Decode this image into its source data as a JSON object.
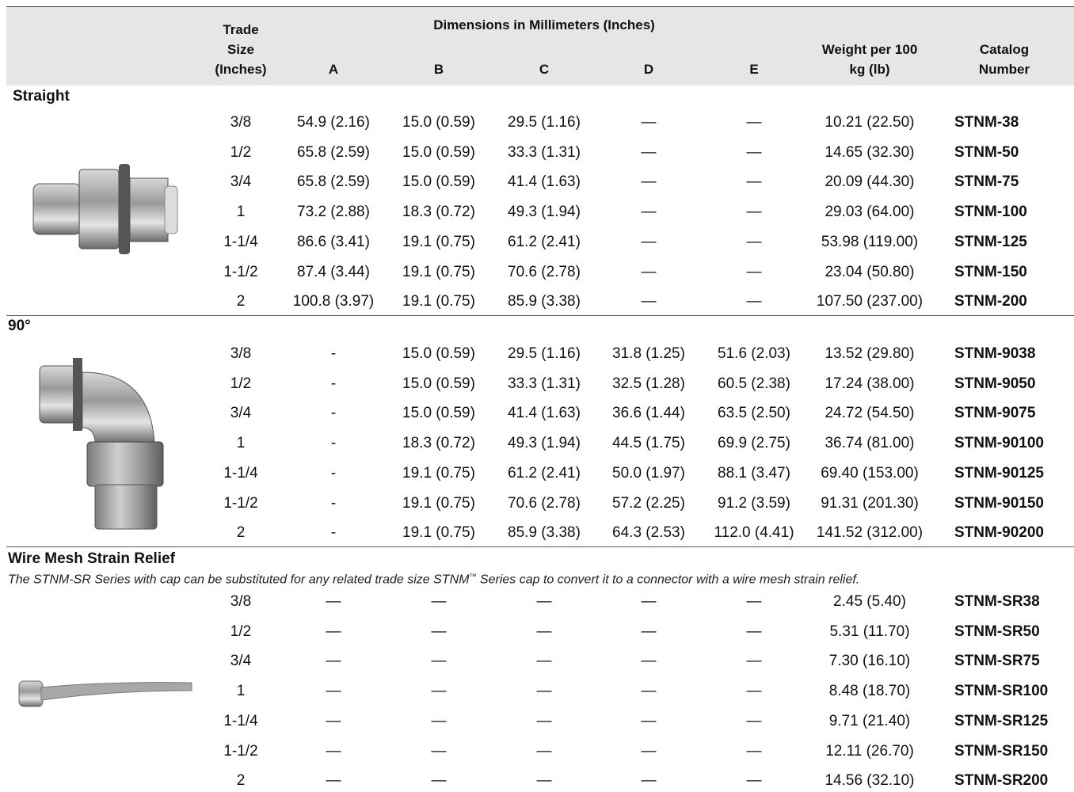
{
  "header": {
    "trade_size": [
      "Trade",
      "Size",
      "(Inches)"
    ],
    "dimensions": "Dimensions in Millimeters (Inches)",
    "columns": [
      "A",
      "B",
      "C",
      "D",
      "E"
    ],
    "weight": [
      "Weight per 100",
      "kg (lb)"
    ],
    "catalog": [
      "Catalog",
      "Number"
    ]
  },
  "sections": [
    {
      "title": "Straight",
      "rows": [
        [
          "3/8",
          "54.9 (2.16)",
          "15.0 (0.59)",
          "29.5 (1.16)",
          "—",
          "—",
          "10.21 (22.50)",
          "STNM-38"
        ],
        [
          "1/2",
          "65.8 (2.59)",
          "15.0 (0.59)",
          "33.3 (1.31)",
          "—",
          "—",
          "14.65 (32.30)",
          "STNM-50"
        ],
        [
          "3/4",
          "65.8 (2.59)",
          "15.0 (0.59)",
          "41.4 (1.63)",
          "—",
          "—",
          "20.09 (44.30)",
          "STNM-75"
        ],
        [
          "1",
          "73.2 (2.88)",
          "18.3 (0.72)",
          "49.3 (1.94)",
          "—",
          "—",
          "29.03 (64.00)",
          "STNM-100"
        ],
        [
          "1-1/4",
          "86.6 (3.41)",
          "19.1 (0.75)",
          "61.2 (2.41)",
          "—",
          "—",
          "53.98 (119.00)",
          "STNM-125"
        ],
        [
          "1-1/2",
          "87.4 (3.44)",
          "19.1 (0.75)",
          "70.6 (2.78)",
          "—",
          "—",
          "23.04 (50.80)",
          "STNM-150"
        ],
        [
          "2",
          "100.8 (3.97)",
          "19.1 (0.75)",
          "85.9 (3.38)",
          "—",
          "—",
          "107.50 (237.00)",
          "STNM-200"
        ]
      ]
    },
    {
      "title": "90°",
      "rows": [
        [
          "3/8",
          "-",
          "15.0 (0.59)",
          "29.5 (1.16)",
          "31.8 (1.25)",
          "51.6 (2.03)",
          "13.52 (29.80)",
          "STNM-9038"
        ],
        [
          "1/2",
          "-",
          "15.0 (0.59)",
          "33.3 (1.31)",
          "32.5 (1.28)",
          "60.5 (2.38)",
          "17.24 (38.00)",
          "STNM-9050"
        ],
        [
          "3/4",
          "-",
          "15.0 (0.59)",
          "41.4 (1.63)",
          "36.6 (1.44)",
          "63.5 (2.50)",
          "24.72 (54.50)",
          "STNM-9075"
        ],
        [
          "1",
          "-",
          "18.3 (0.72)",
          "49.3 (1.94)",
          "44.5 (1.75)",
          "69.9 (2.75)",
          "36.74 (81.00)",
          "STNM-90100"
        ],
        [
          "1-1/4",
          "-",
          "19.1 (0.75)",
          "61.2 (2.41)",
          "50.0 (1.97)",
          "88.1 (3.47)",
          "69.40 (153.00)",
          "STNM-90125"
        ],
        [
          "1-1/2",
          "-",
          "19.1 (0.75)",
          "70.6 (2.78)",
          "57.2 (2.25)",
          "91.2 (3.59)",
          "91.31 (201.30)",
          "STNM-90150"
        ],
        [
          "2",
          "-",
          "19.1 (0.75)",
          "85.9 (3.38)",
          "64.3 (2.53)",
          "112.0 (4.41)",
          "141.52 (312.00)",
          "STNM-90200"
        ]
      ]
    },
    {
      "title": "Wire Mesh Strain Relief",
      "note": {
        "text_1": "The STNM-SR Series with cap can be substituted for any related trade size STNM",
        "mark": "™",
        "text_2": " Series cap to convert it to a connector with a wire mesh strain relief."
      },
      "rows": [
        [
          "3/8",
          "—",
          "—",
          "—",
          "—",
          "—",
          "2.45 (5.40)",
          "STNM-SR38"
        ],
        [
          "1/2",
          "—",
          "—",
          "—",
          "—",
          "—",
          "5.31 (11.70)",
          "STNM-SR50"
        ],
        [
          "3/4",
          "—",
          "—",
          "—",
          "—",
          "—",
          "7.30 (16.10)",
          "STNM-SR75"
        ],
        [
          "1",
          "—",
          "—",
          "—",
          "—",
          "—",
          "8.48 (18.70)",
          "STNM-SR100"
        ],
        [
          "1-1/4",
          "—",
          "—",
          "—",
          "—",
          "—",
          "9.71 (21.40)",
          "STNM-SR125"
        ],
        [
          "1-1/2",
          "—",
          "—",
          "—",
          "—",
          "—",
          "12.11 (26.70)",
          "STNM-SR150"
        ],
        [
          "2",
          "—",
          "—",
          "—",
          "—",
          "—",
          "14.56 (32.10)",
          "STNM-SR200"
        ]
      ]
    }
  ]
}
